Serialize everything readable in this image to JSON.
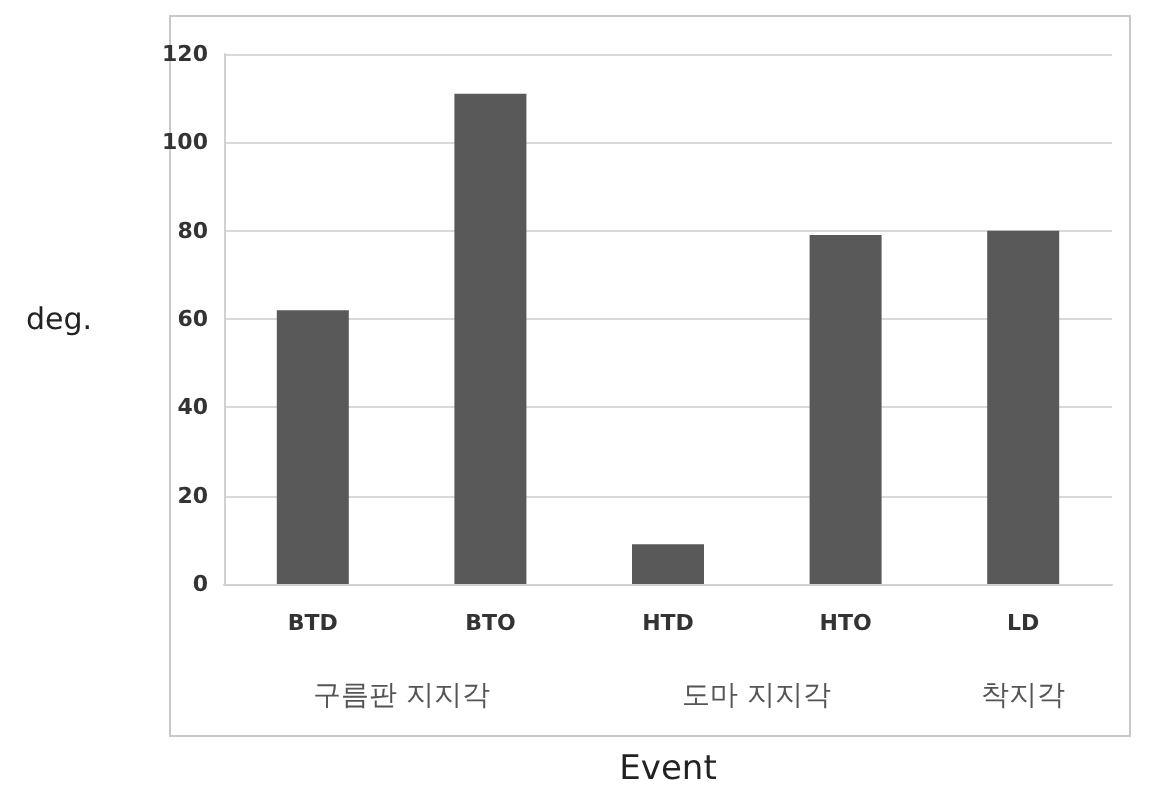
{
  "chart_data": {
    "type": "bar",
    "categories": [
      "BTD",
      "BTO",
      "HTD",
      "HTO",
      "LD"
    ],
    "values": [
      62,
      111,
      9,
      79,
      80
    ],
    "color": "#595959",
    "ylim": [
      0,
      120
    ],
    "yticks": [
      0,
      20,
      40,
      60,
      80,
      100,
      120
    ],
    "grid": "y",
    "ylabel": "deg.",
    "xlabel": "Event",
    "annotations": [
      "구름판 지지각",
      "도마 지지각",
      "착지각"
    ]
  }
}
